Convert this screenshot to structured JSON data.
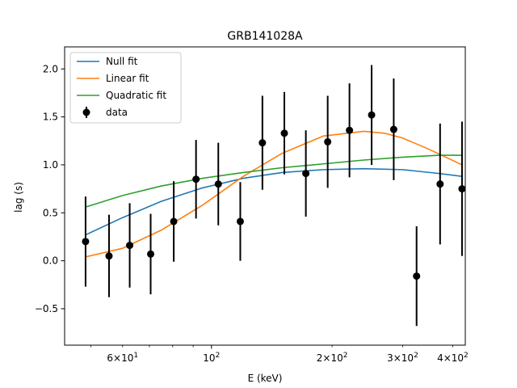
{
  "chart_data": {
    "type": "scatter",
    "title": "GRB141028A",
    "xlabel": "E (keV)",
    "ylabel": "lag (s)",
    "xscale": "log",
    "xlim": [
      43,
      430
    ],
    "ylim": [
      -0.88,
      2.23
    ],
    "grid": false,
    "legend_position": "top-left",
    "x_ticks_major": [
      {
        "value": 100,
        "label": "10^2"
      }
    ],
    "x_ticks_minor": [
      {
        "value": 60,
        "label": "6×10^1"
      },
      {
        "value": 200,
        "label": "2×10^2"
      },
      {
        "value": 300,
        "label": "3×10^2"
      },
      {
        "value": 400,
        "label": "4×10^2"
      }
    ],
    "y_ticks": [
      "−0.5",
      "0.0",
      "0.5",
      "1.0",
      "1.5",
      "2.0"
    ],
    "y_tick_values": [
      -0.5,
      0.0,
      0.5,
      1.0,
      1.5,
      2.0
    ],
    "series": [
      {
        "name": "data",
        "kind": "errorbar",
        "color": "#000000",
        "x": [
          48.5,
          55.5,
          62.5,
          70.5,
          80.5,
          91.5,
          104,
          118,
          134,
          152,
          172,
          195,
          221,
          251,
          285,
          325,
          372,
          422
        ],
        "y": [
          0.2,
          0.05,
          0.16,
          0.07,
          0.41,
          0.85,
          0.8,
          0.41,
          1.23,
          1.33,
          0.91,
          1.24,
          1.36,
          1.52,
          1.37,
          -0.16,
          0.8,
          0.75
        ],
        "yerr": [
          0.47,
          0.43,
          0.44,
          0.42,
          0.42,
          0.41,
          0.43,
          0.41,
          0.49,
          0.43,
          0.45,
          0.48,
          0.49,
          0.52,
          0.53,
          0.52,
          0.63,
          0.7
        ]
      },
      {
        "name": "Null fit",
        "kind": "line",
        "color": "#1f77b4",
        "x": [
          48.5,
          60,
          75,
          95,
          120,
          150,
          190,
          240,
          300,
          370,
          422
        ],
        "y": [
          0.27,
          0.45,
          0.62,
          0.76,
          0.86,
          0.92,
          0.95,
          0.96,
          0.95,
          0.91,
          0.88
        ]
      },
      {
        "name": "Linear fit",
        "kind": "line",
        "color": "#ff7f0e",
        "x": [
          48.5,
          60,
          75,
          95,
          120,
          150,
          190,
          240,
          270,
          300,
          350,
          422
        ],
        "y": [
          0.04,
          0.13,
          0.32,
          0.58,
          0.88,
          1.12,
          1.3,
          1.35,
          1.33,
          1.28,
          1.16,
          1.0
        ]
      },
      {
        "name": "Quadratic fit",
        "kind": "line",
        "color": "#2ca02c",
        "x": [
          48.5,
          60,
          75,
          95,
          120,
          150,
          190,
          240,
          300,
          370,
          422
        ],
        "y": [
          0.56,
          0.68,
          0.78,
          0.86,
          0.92,
          0.97,
          1.01,
          1.05,
          1.08,
          1.1,
          1.1
        ]
      }
    ]
  }
}
